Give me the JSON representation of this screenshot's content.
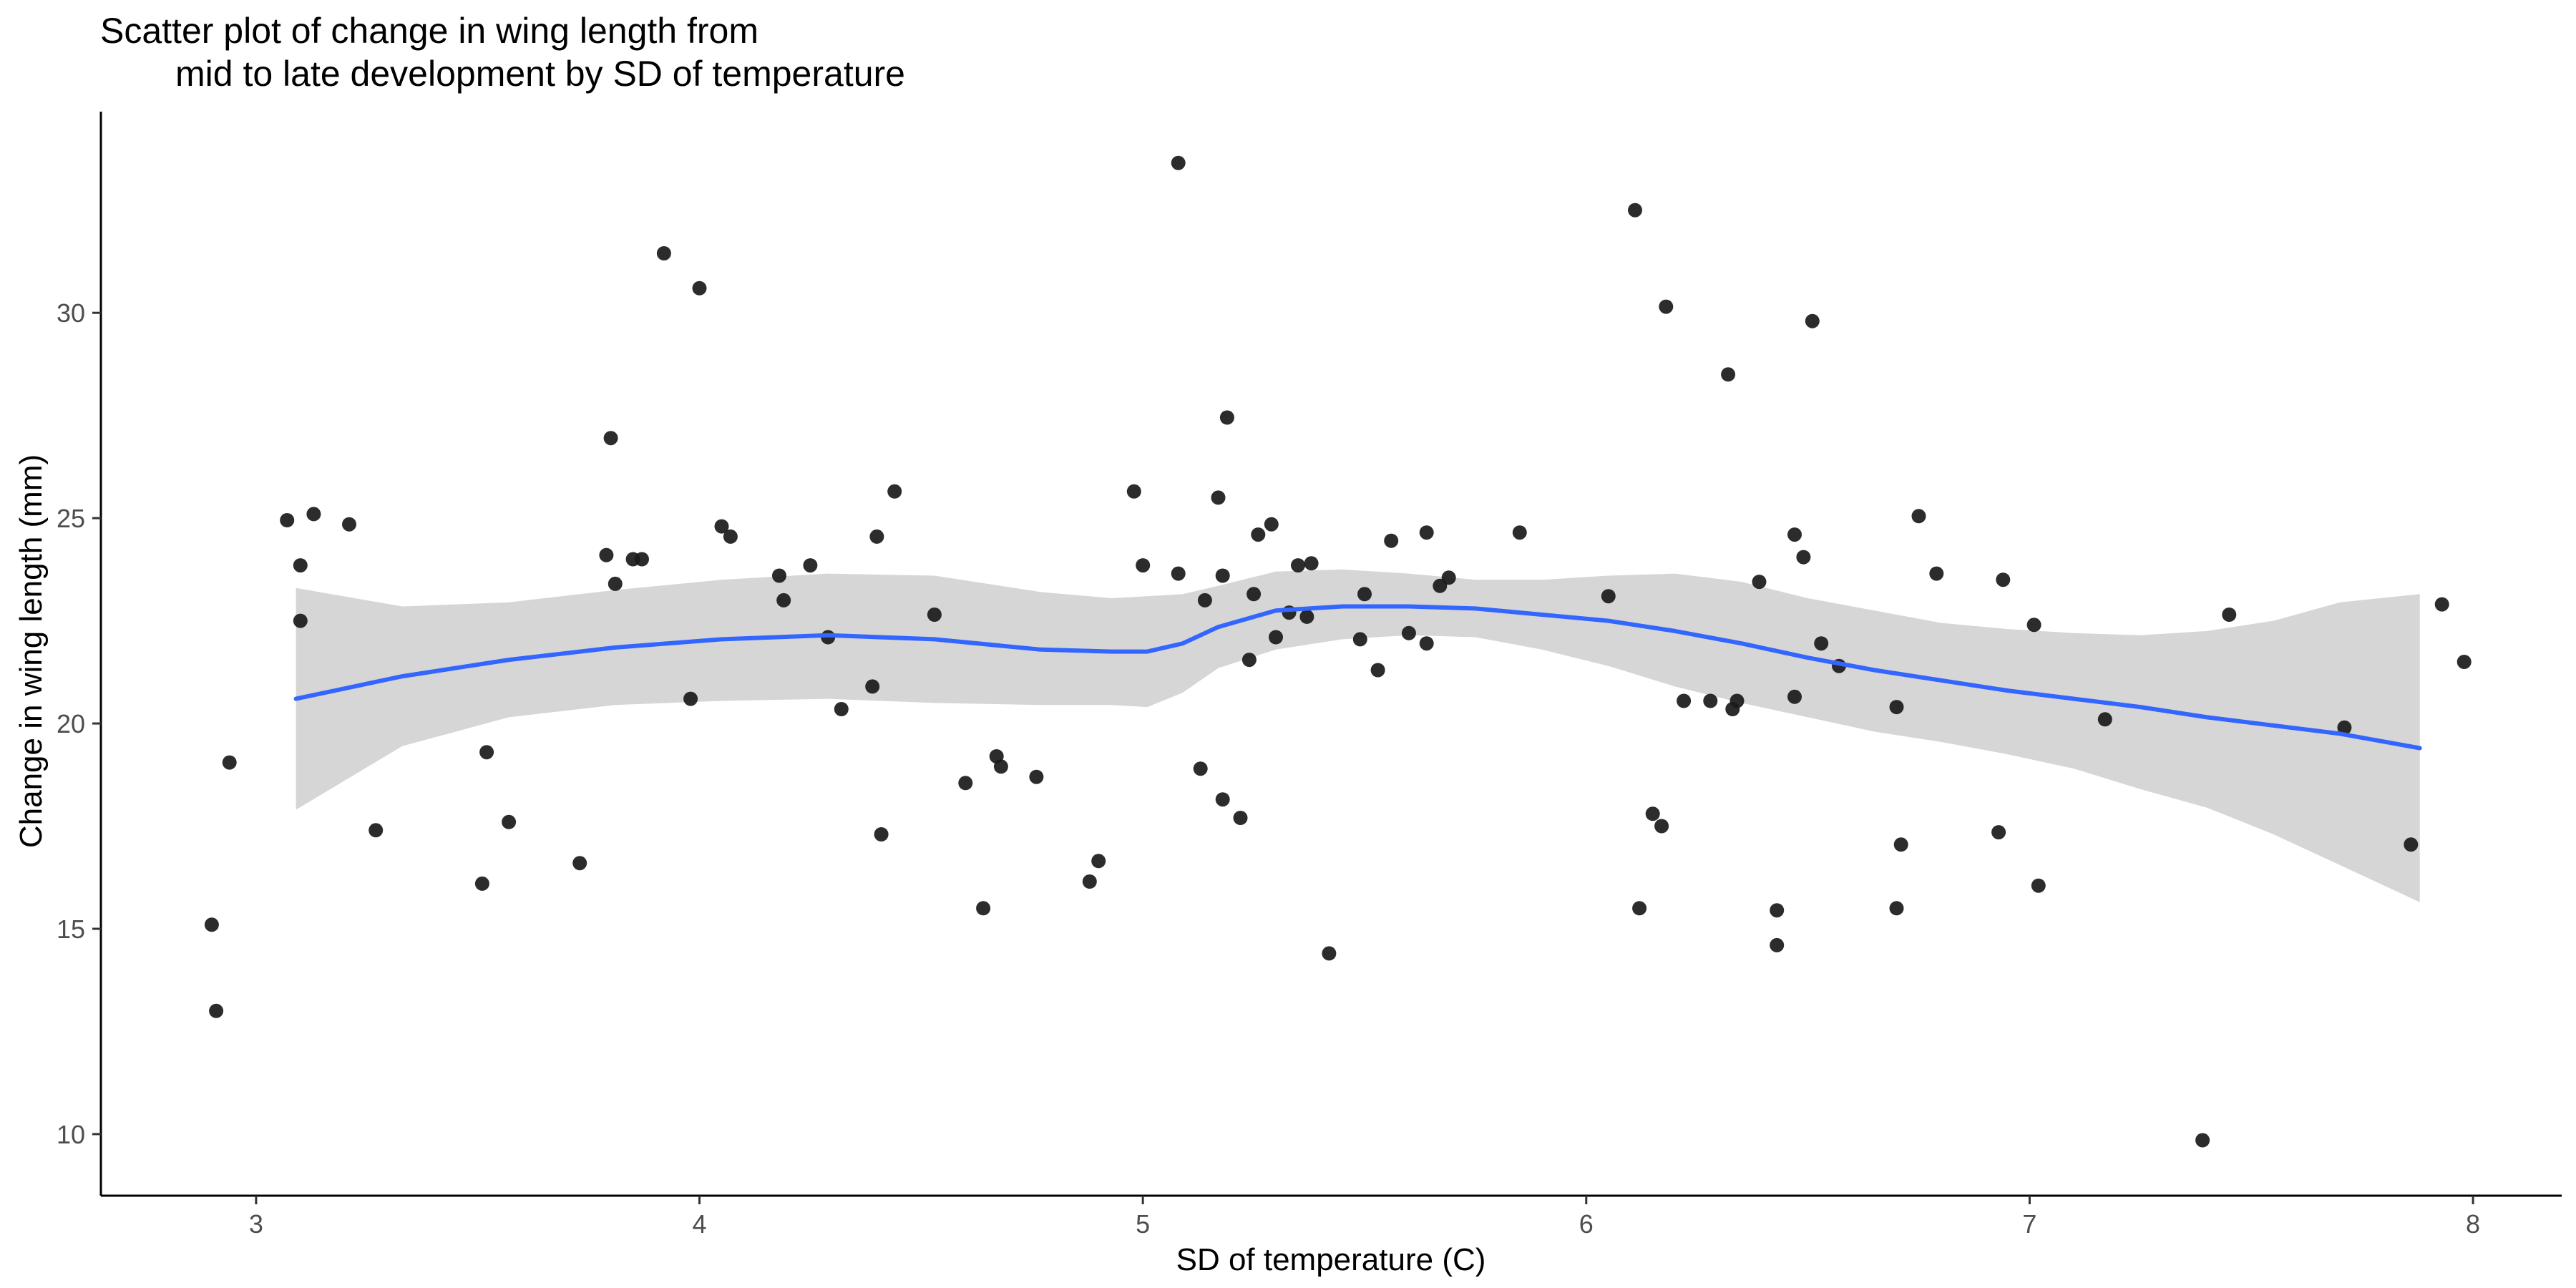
{
  "chart_data": {
    "type": "scatter",
    "title_lines": [
      "Scatter plot of change in wing length from",
      "mid to late development by SD of temperature"
    ],
    "xlabel": "SD of temperature (C)",
    "ylabel": "Change in wing length (mm)",
    "xlim": [
      2.65,
      8.2
    ],
    "ylim": [
      8.5,
      34.9
    ],
    "x_ticks": [
      3,
      4,
      5,
      6,
      7,
      8
    ],
    "x_tick_labels": [
      "3",
      "4",
      "5",
      "6",
      "7",
      "8"
    ],
    "y_ticks": [
      10,
      15,
      20,
      25,
      30
    ],
    "y_tick_labels": [
      "10",
      "15",
      "20",
      "25",
      "30"
    ],
    "grid": false,
    "legend": "none",
    "colors": {
      "points": "#1a1a1a",
      "smooth_line": "#3366ff",
      "confidence_band": "#d4d4d4",
      "axis": "#000000",
      "tick_label": "#4d4d4d"
    },
    "series": [
      {
        "points": [
          [
            2.9,
            15.1
          ],
          [
            2.91,
            13.0
          ],
          [
            2.94,
            19.05
          ],
          [
            3.07,
            24.95
          ],
          [
            3.1,
            23.85
          ],
          [
            3.1,
            22.5
          ],
          [
            3.13,
            25.1
          ],
          [
            3.21,
            24.85
          ],
          [
            3.27,
            17.4
          ],
          [
            3.51,
            16.1
          ],
          [
            3.52,
            19.3
          ],
          [
            3.57,
            17.6
          ],
          [
            3.73,
            16.6
          ],
          [
            3.79,
            24.1
          ],
          [
            3.8,
            26.95
          ],
          [
            3.81,
            23.4
          ],
          [
            3.85,
            24.0
          ],
          [
            3.87,
            24.0
          ],
          [
            3.92,
            31.45
          ],
          [
            3.98,
            20.6
          ],
          [
            4.0,
            30.6
          ],
          [
            4.05,
            24.8
          ],
          [
            4.07,
            24.55
          ],
          [
            4.18,
            23.6
          ],
          [
            4.19,
            23.0
          ],
          [
            4.25,
            23.85
          ],
          [
            4.29,
            22.1
          ],
          [
            4.32,
            20.35
          ],
          [
            4.39,
            20.9
          ],
          [
            4.4,
            24.55
          ],
          [
            4.41,
            17.3
          ],
          [
            4.44,
            25.65
          ],
          [
            4.53,
            22.65
          ],
          [
            4.6,
            18.55
          ],
          [
            4.64,
            15.5
          ],
          [
            4.67,
            19.2
          ],
          [
            4.68,
            18.95
          ],
          [
            4.76,
            18.7
          ],
          [
            4.88,
            16.15
          ],
          [
            4.9,
            16.65
          ],
          [
            4.98,
            25.65
          ],
          [
            5.0,
            23.85
          ],
          [
            5.08,
            33.65
          ],
          [
            5.08,
            23.65
          ],
          [
            5.13,
            18.9
          ],
          [
            5.14,
            23.0
          ],
          [
            5.17,
            25.5
          ],
          [
            5.18,
            18.15
          ],
          [
            5.18,
            23.6
          ],
          [
            5.19,
            27.45
          ],
          [
            5.22,
            17.7
          ],
          [
            5.24,
            21.55
          ],
          [
            5.25,
            23.15
          ],
          [
            5.26,
            24.6
          ],
          [
            5.29,
            24.85
          ],
          [
            5.3,
            22.1
          ],
          [
            5.33,
            22.7
          ],
          [
            5.35,
            23.85
          ],
          [
            5.37,
            22.6
          ],
          [
            5.38,
            23.9
          ],
          [
            5.42,
            14.4
          ],
          [
            5.49,
            22.05
          ],
          [
            5.5,
            23.15
          ],
          [
            5.53,
            21.3
          ],
          [
            5.56,
            24.45
          ],
          [
            5.6,
            22.2
          ],
          [
            5.64,
            24.65
          ],
          [
            5.64,
            21.95
          ],
          [
            5.67,
            23.35
          ],
          [
            5.69,
            23.55
          ],
          [
            5.85,
            24.65
          ],
          [
            6.05,
            23.1
          ],
          [
            6.11,
            32.5
          ],
          [
            6.12,
            15.5
          ],
          [
            6.15,
            17.8
          ],
          [
            6.17,
            17.5
          ],
          [
            6.18,
            30.15
          ],
          [
            6.22,
            20.55
          ],
          [
            6.28,
            20.55
          ],
          [
            6.32,
            28.5
          ],
          [
            6.33,
            20.35
          ],
          [
            6.34,
            20.55
          ],
          [
            6.39,
            23.45
          ],
          [
            6.43,
            15.45
          ],
          [
            6.43,
            14.6
          ],
          [
            6.47,
            20.65
          ],
          [
            6.47,
            24.6
          ],
          [
            6.49,
            24.05
          ],
          [
            6.51,
            29.8
          ],
          [
            6.53,
            21.95
          ],
          [
            6.57,
            21.4
          ],
          [
            6.7,
            20.4
          ],
          [
            6.7,
            15.5
          ],
          [
            6.71,
            17.05
          ],
          [
            6.75,
            25.05
          ],
          [
            6.79,
            23.65
          ],
          [
            6.93,
            17.35
          ],
          [
            6.94,
            23.5
          ],
          [
            7.01,
            22.4
          ],
          [
            7.02,
            16.05
          ],
          [
            7.17,
            20.1
          ],
          [
            7.39,
            9.85
          ],
          [
            7.45,
            22.65
          ],
          [
            7.71,
            19.9
          ],
          [
            7.86,
            17.05
          ],
          [
            7.93,
            22.9
          ],
          [
            7.98,
            21.5
          ]
        ]
      }
    ],
    "smooth_fit": {
      "x": [
        3.09,
        3.33,
        3.57,
        3.81,
        4.05,
        4.29,
        4.53,
        4.77,
        4.93,
        5.01,
        5.09,
        5.17,
        5.3,
        5.45,
        5.6,
        5.75,
        5.9,
        6.05,
        6.2,
        6.35,
        6.5,
        6.65,
        6.8,
        6.95,
        7.1,
        7.25,
        7.4,
        7.55,
        7.7,
        7.88
      ],
      "y": [
        20.6,
        21.15,
        21.55,
        21.85,
        22.05,
        22.15,
        22.05,
        21.8,
        21.75,
        21.75,
        21.95,
        22.35,
        22.75,
        22.85,
        22.85,
        22.8,
        22.65,
        22.5,
        22.25,
        21.95,
        21.6,
        21.3,
        21.05,
        20.8,
        20.6,
        20.4,
        20.15,
        19.95,
        19.75,
        19.4
      ],
      "lower": [
        17.9,
        19.45,
        20.15,
        20.45,
        20.55,
        20.6,
        20.5,
        20.45,
        20.45,
        20.4,
        20.75,
        21.35,
        21.8,
        22.05,
        22.15,
        22.1,
        21.8,
        21.4,
        20.9,
        20.5,
        20.15,
        19.8,
        19.55,
        19.25,
        18.9,
        18.4,
        17.95,
        17.3,
        16.55,
        15.65
      ],
      "upper": [
        23.3,
        22.85,
        22.95,
        23.25,
        23.5,
        23.65,
        23.6,
        23.2,
        23.05,
        23.1,
        23.15,
        23.35,
        23.7,
        23.75,
        23.65,
        23.5,
        23.5,
        23.6,
        23.65,
        23.45,
        23.05,
        22.75,
        22.45,
        22.3,
        22.2,
        22.15,
        22.25,
        22.5,
        22.95,
        23.15
      ]
    }
  }
}
